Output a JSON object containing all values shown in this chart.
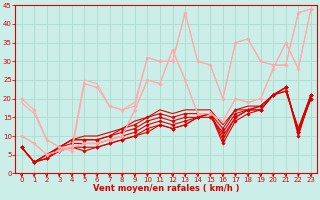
{
  "xlabel": "Vent moyen/en rafales ( km/h )",
  "xlim": [
    -0.5,
    23.5
  ],
  "ylim": [
    0,
    45
  ],
  "yticks": [
    0,
    5,
    10,
    15,
    20,
    25,
    30,
    35,
    40,
    45
  ],
  "xticks": [
    0,
    1,
    2,
    3,
    4,
    5,
    6,
    7,
    8,
    9,
    10,
    11,
    12,
    13,
    14,
    15,
    16,
    17,
    18,
    19,
    20,
    21,
    22,
    23
  ],
  "background_color": "#cceee8",
  "grid_color": "#aaddcc",
  "lines": [
    {
      "x": [
        0,
        1,
        2,
        3,
        4,
        5,
        6,
        7,
        8,
        9,
        10,
        11,
        12,
        13,
        14,
        15,
        16,
        17,
        18,
        19,
        20,
        21,
        22,
        23
      ],
      "y": [
        7,
        3,
        4,
        6,
        7,
        6,
        7,
        8,
        9,
        10,
        11,
        13,
        12,
        13,
        15,
        16,
        8,
        14,
        16,
        17,
        21,
        23,
        10,
        21
      ],
      "color": "#dd0000",
      "lw": 0.8,
      "marker": "D",
      "ms": 1.8,
      "alpha": 1.0
    },
    {
      "x": [
        0,
        1,
        2,
        3,
        4,
        5,
        6,
        7,
        8,
        9,
        10,
        11,
        12,
        13,
        14,
        15,
        16,
        17,
        18,
        19,
        20,
        21,
        22,
        23
      ],
      "y": [
        7,
        3,
        4,
        6,
        7,
        7,
        7,
        8,
        9,
        10,
        12,
        13,
        12,
        13,
        15,
        16,
        9,
        15,
        17,
        17,
        21,
        23,
        11,
        21
      ],
      "color": "#dd0000",
      "lw": 0.8,
      "marker": "D",
      "ms": 1.8,
      "alpha": 1.0
    },
    {
      "x": [
        0,
        1,
        2,
        3,
        4,
        5,
        6,
        7,
        8,
        9,
        10,
        11,
        12,
        13,
        14,
        15,
        16,
        17,
        18,
        19,
        20,
        21,
        22,
        23
      ],
      "y": [
        7,
        3,
        4,
        7,
        8,
        8,
        8,
        9,
        10,
        11,
        13,
        14,
        13,
        14,
        15,
        16,
        10,
        15,
        17,
        18,
        21,
        23,
        11,
        20
      ],
      "color": "#dd0000",
      "lw": 0.8,
      "marker": "D",
      "ms": 1.8,
      "alpha": 1.0
    },
    {
      "x": [
        0,
        1,
        2,
        3,
        4,
        5,
        6,
        7,
        8,
        9,
        10,
        11,
        12,
        13,
        14,
        15,
        16,
        17,
        18,
        19,
        20,
        21,
        22,
        23
      ],
      "y": [
        7,
        3,
        5,
        7,
        9,
        9,
        9,
        10,
        11,
        12,
        14,
        15,
        14,
        15,
        15,
        15,
        11,
        16,
        17,
        17,
        21,
        23,
        11,
        20
      ],
      "color": "#dd0000",
      "lw": 0.8,
      "marker": "D",
      "ms": 1.8,
      "alpha": 1.0
    },
    {
      "x": [
        0,
        1,
        2,
        3,
        4,
        5,
        6,
        7,
        8,
        9,
        10,
        11,
        12,
        13,
        14,
        15,
        16,
        17,
        18,
        19,
        20,
        21,
        22,
        23
      ],
      "y": [
        7,
        3,
        5,
        7,
        9,
        9,
        9,
        10,
        12,
        13,
        15,
        16,
        15,
        16,
        16,
        16,
        12,
        17,
        17,
        18,
        21,
        22,
        12,
        21
      ],
      "color": "#dd0000",
      "lw": 0.8,
      "marker": "D",
      "ms": 1.8,
      "alpha": 1.0
    },
    {
      "x": [
        0,
        1,
        2,
        3,
        4,
        5,
        6,
        7,
        8,
        9,
        10,
        11,
        12,
        13,
        14,
        15,
        16,
        17,
        18,
        19,
        20,
        21,
        22,
        23
      ],
      "y": [
        7,
        3,
        5,
        7,
        9,
        10,
        10,
        11,
        12,
        14,
        15,
        17,
        16,
        17,
        17,
        17,
        13,
        17,
        18,
        18,
        21,
        22,
        12,
        21
      ],
      "color": "#dd0000",
      "lw": 0.8,
      "marker": null,
      "ms": 0,
      "alpha": 1.0
    },
    {
      "x": [
        0,
        1,
        2,
        3,
        4,
        5,
        6,
        7,
        8,
        9,
        10,
        11,
        12,
        13,
        14,
        15,
        16,
        17,
        18,
        19,
        20,
        21,
        22,
        23
      ],
      "y": [
        20,
        17,
        9,
        7,
        6,
        24,
        23,
        18,
        17,
        18,
        31,
        30,
        30,
        43,
        30,
        29,
        20,
        35,
        36,
        30,
        29,
        29,
        43,
        44
      ],
      "color": "#ffaaaa",
      "lw": 0.8,
      "marker": "D",
      "ms": 1.8,
      "alpha": 1.0
    },
    {
      "x": [
        0,
        1,
        2,
        3,
        4,
        5,
        6,
        7,
        8,
        9,
        10,
        11,
        12,
        13,
        14,
        15,
        16,
        17,
        18,
        19,
        20,
        21,
        22,
        23
      ],
      "y": [
        19,
        16,
        9,
        7,
        7,
        25,
        24,
        18,
        17,
        19,
        31,
        30,
        30,
        43,
        30,
        29,
        20,
        35,
        36,
        30,
        29,
        29,
        43,
        44
      ],
      "color": "#ffaaaa",
      "lw": 0.8,
      "marker": null,
      "ms": 0,
      "alpha": 1.0
    },
    {
      "x": [
        0,
        1,
        2,
        3,
        4,
        5,
        6,
        7,
        8,
        9,
        10,
        11,
        12,
        13,
        14,
        15,
        16,
        17,
        18,
        19,
        20,
        21,
        22,
        23
      ],
      "y": [
        10,
        8,
        5,
        6,
        7,
        8,
        8,
        9,
        10,
        17,
        25,
        24,
        33,
        25,
        16,
        16,
        14,
        20,
        19,
        20,
        28,
        35,
        28,
        44
      ],
      "color": "#ffaaaa",
      "lw": 0.8,
      "marker": "D",
      "ms": 1.8,
      "alpha": 1.0
    },
    {
      "x": [
        0,
        1,
        2,
        3,
        4,
        5,
        6,
        7,
        8,
        9,
        10,
        11,
        12,
        13,
        14,
        15,
        16,
        17,
        18,
        19,
        20,
        21,
        22,
        23
      ],
      "y": [
        10,
        8,
        5,
        6,
        7,
        8,
        8,
        9,
        10,
        17,
        25,
        24,
        33,
        25,
        16,
        16,
        14,
        20,
        19,
        20,
        28,
        35,
        28,
        44
      ],
      "color": "#ffaaaa",
      "lw": 0.8,
      "marker": null,
      "ms": 0,
      "alpha": 1.0
    }
  ],
  "arrow_color": "#dd0000",
  "xlabel_color": "#dd0000",
  "xlabel_fontsize": 6,
  "tick_labelsize": 5
}
